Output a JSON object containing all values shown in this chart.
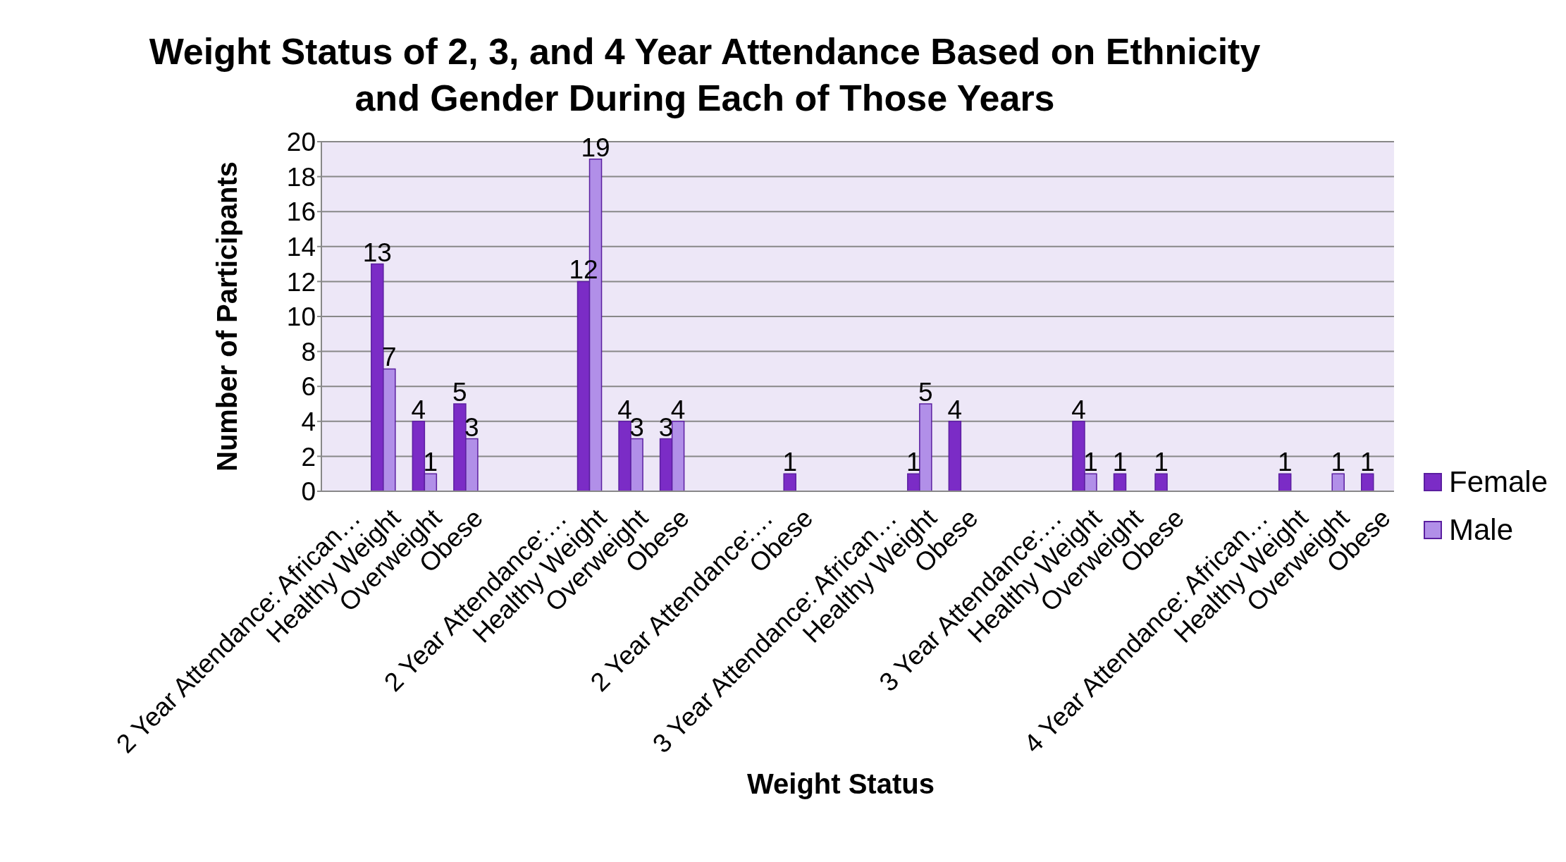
{
  "chart_data": {
    "type": "bar",
    "title": "Weight Status of 2, 3, and 4 Year Attendance Based on Ethnicity and Gender During Each of Those Years",
    "xlabel": "Weight Status",
    "ylabel": "Number of Participants",
    "categories": [
      null,
      "2 Year Attendance: African…\nHealthy Weight",
      "Overweight",
      "Obese",
      null,
      null,
      "2 Year Attendance:…\nHealthy Weight",
      "Overweight",
      "Obese",
      null,
      null,
      "2 Year Attendance:…\nObese",
      null,
      null,
      "3 Year Attendance: African…\nHealthy Weight",
      "Obese",
      null,
      null,
      "3 Year Attendance:…\nHealthy Weight",
      "Overweight",
      "Obese",
      null,
      null,
      "4 Year Attendance: African…\nHealthy Weight",
      "Overweight",
      "Obese"
    ],
    "series": [
      {
        "name": "Female",
        "color": "#7b2cc6",
        "values": [
          null,
          13,
          4,
          5,
          null,
          null,
          12,
          4,
          3,
          null,
          null,
          1,
          null,
          null,
          1,
          4,
          null,
          null,
          4,
          1,
          1,
          null,
          null,
          1,
          null,
          1
        ]
      },
      {
        "name": "Male",
        "color": "#b18fe8",
        "values": [
          null,
          7,
          1,
          3,
          null,
          null,
          19,
          3,
          4,
          null,
          null,
          null,
          null,
          null,
          5,
          null,
          null,
          null,
          1,
          null,
          null,
          null,
          null,
          null,
          1,
          null
        ]
      }
    ],
    "ylim": [
      0,
      20
    ],
    "yticks": [
      0,
      2,
      4,
      6,
      8,
      10,
      12,
      14,
      16,
      18,
      20
    ],
    "grid": "y",
    "legend": "right",
    "data_labels": true
  }
}
